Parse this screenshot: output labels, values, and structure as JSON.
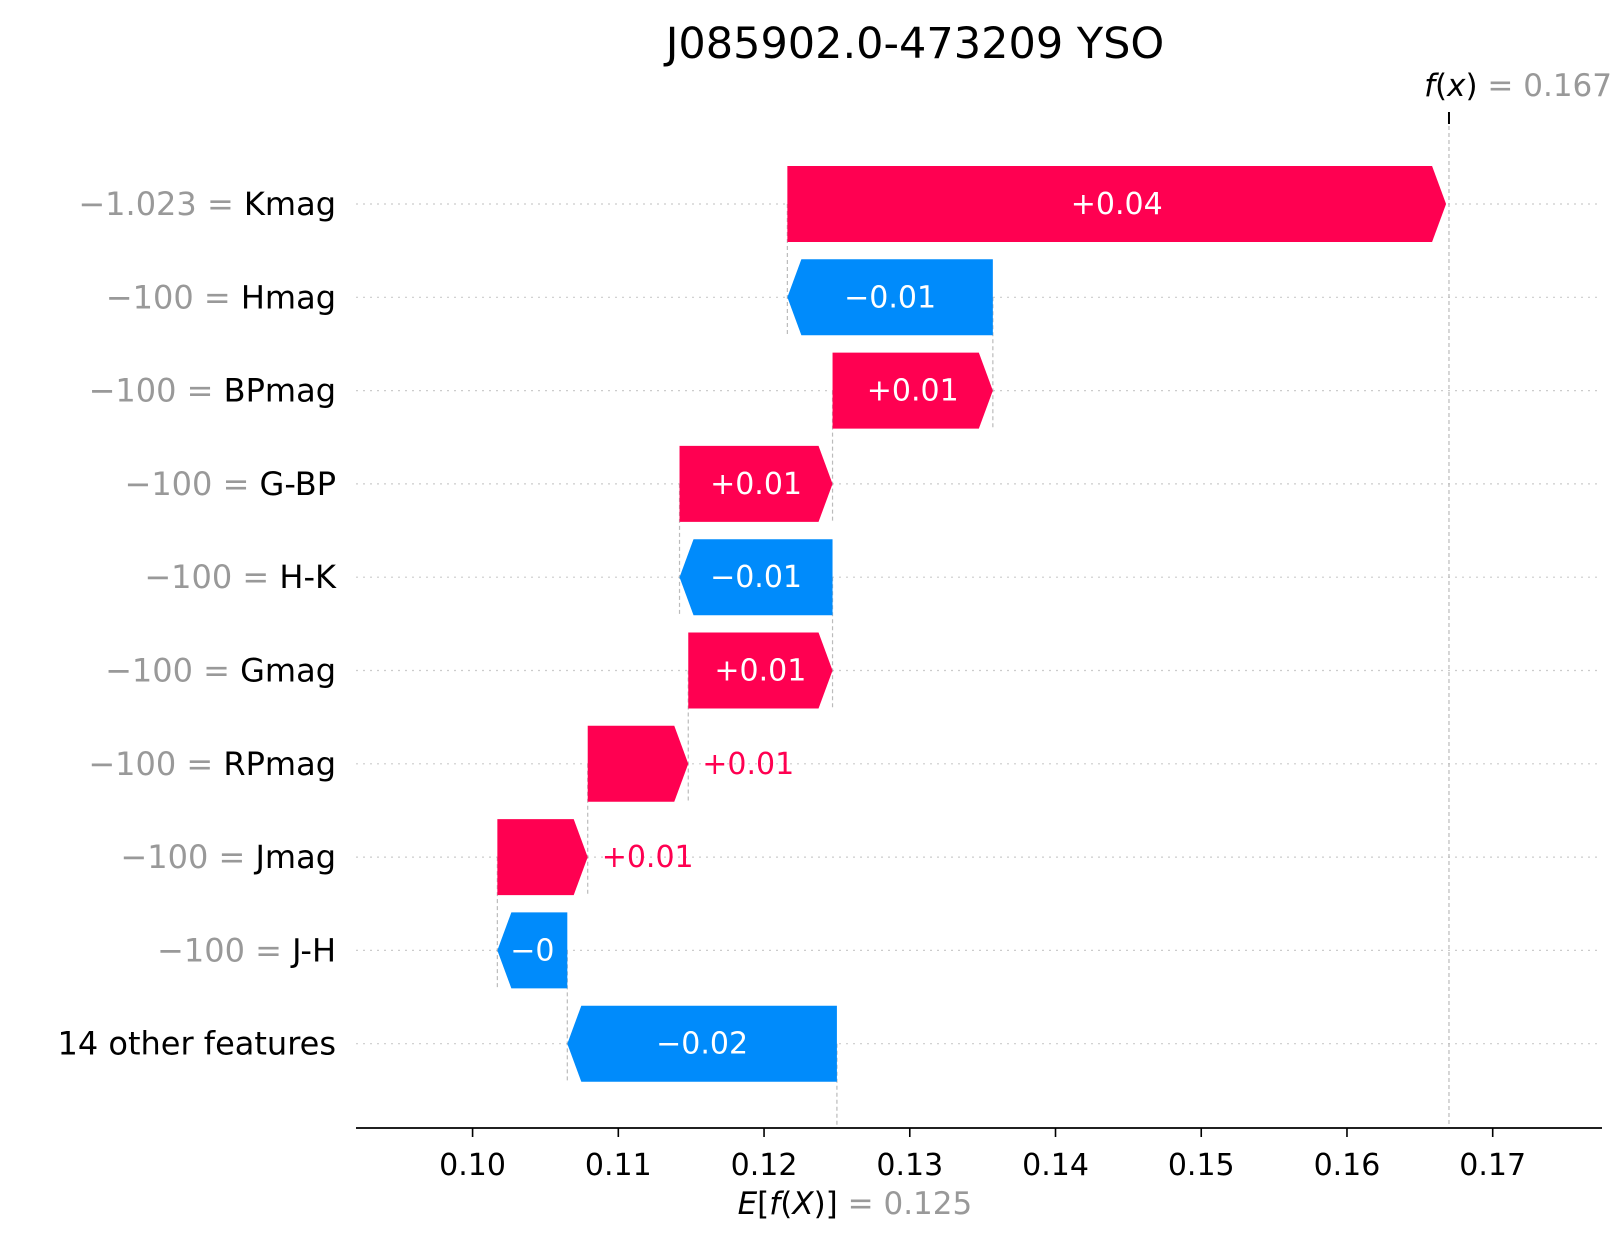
{
  "chart_data": {
    "type": "waterfall",
    "title": "J085902.0-473209 YSO",
    "base_value": 0.125,
    "base_value_label": "0.125",
    "output_value": 0.167,
    "output_value_label": "0.167",
    "xlim": [
      0.092,
      0.1775
    ],
    "xticks": [
      0.1,
      0.11,
      0.12,
      0.13,
      0.14,
      0.15,
      0.16,
      0.17
    ],
    "xtick_labels": [
      "0.10",
      "0.11",
      "0.12",
      "0.13",
      "0.14",
      "0.15",
      "0.16",
      "0.17"
    ],
    "expected_label": "E[f(X)]",
    "output_label": "f(x)",
    "colors": {
      "positive": "#ff0051",
      "negative": "#008bfb",
      "grid": "#cccccc",
      "muted": "#999999"
    },
    "features": [
      {
        "value": "−1.023",
        "name": "Kmag",
        "start": 0.1216,
        "end": 0.1668,
        "label": "+0.04",
        "label_position": "inside"
      },
      {
        "value": "−100",
        "name": "Hmag",
        "start": 0.1357,
        "end": 0.1216,
        "label": "−0.01",
        "label_position": "inside"
      },
      {
        "value": "−100",
        "name": "BPmag",
        "start": 0.1247,
        "end": 0.1357,
        "label": "+0.01",
        "label_position": "inside"
      },
      {
        "value": "−100",
        "name": "G-BP",
        "start": 0.1142,
        "end": 0.1247,
        "label": "+0.01",
        "label_position": "inside"
      },
      {
        "value": "−100",
        "name": "H-K",
        "start": 0.1247,
        "end": 0.1142,
        "label": "−0.01",
        "label_position": "inside"
      },
      {
        "value": "−100",
        "name": "Gmag",
        "start": 0.1148,
        "end": 0.1247,
        "label": "+0.01",
        "label_position": "inside"
      },
      {
        "value": "−100",
        "name": "RPmag",
        "start": 0.1079,
        "end": 0.1148,
        "label": "+0.01",
        "label_position": "outside"
      },
      {
        "value": "−100",
        "name": "Jmag",
        "start": 0.1017,
        "end": 0.1079,
        "label": "+0.01",
        "label_position": "outside"
      },
      {
        "value": "−100",
        "name": "J-H",
        "start": 0.1065,
        "end": 0.1017,
        "label": "−0",
        "label_position": "inside"
      },
      {
        "value": "",
        "name": "14 other features",
        "start": 0.125,
        "end": 0.1065,
        "label": "−0.02",
        "label_position": "inside"
      }
    ]
  }
}
